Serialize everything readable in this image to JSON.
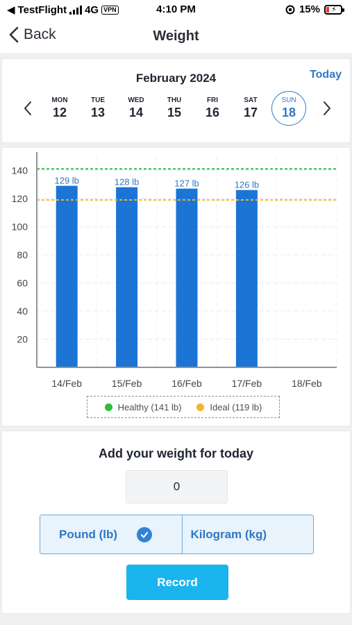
{
  "status_bar": {
    "carrier": "TestFlight",
    "network": "4G",
    "vpn": "VPN",
    "time": "4:10 PM",
    "battery": "15%"
  },
  "nav": {
    "back_label": "Back",
    "title": "Weight"
  },
  "calendar": {
    "month": "February 2024",
    "today_label": "Today",
    "days": [
      {
        "name": "MON",
        "date": "12"
      },
      {
        "name": "TUE",
        "date": "13"
      },
      {
        "name": "WED",
        "date": "14"
      },
      {
        "name": "THU",
        "date": "15"
      },
      {
        "name": "FRI",
        "date": "16"
      },
      {
        "name": "SAT",
        "date": "17"
      },
      {
        "name": "SUN",
        "date": "18",
        "selected": true
      }
    ]
  },
  "chart_data": {
    "type": "bar",
    "categories": [
      "14/Feb",
      "15/Feb",
      "16/Feb",
      "17/Feb",
      "18/Feb"
    ],
    "values": [
      129,
      128,
      127,
      126,
      null
    ],
    "value_labels": [
      "129 lb",
      "128 lb",
      "127 lb",
      "126 lb",
      ""
    ],
    "ylim": [
      0,
      150
    ],
    "yticks": [
      20,
      40,
      60,
      80,
      100,
      120,
      140
    ],
    "grid": true,
    "bar_color": "#1c74d4",
    "reference_lines": [
      {
        "label": "Healthy (141 lb)",
        "value": 141,
        "color": "#2bbf3a"
      },
      {
        "label": "Ideal (119 lb)",
        "value": 119,
        "color": "#f4b42b"
      }
    ],
    "legend_position": "bottom"
  },
  "form": {
    "title": "Add your weight for today",
    "weight_value": "0",
    "unit_pound": "Pound (lb)",
    "unit_kilogram": "Kilogram (kg)",
    "selected_unit": "Pound (lb)",
    "record_label": "Record"
  }
}
